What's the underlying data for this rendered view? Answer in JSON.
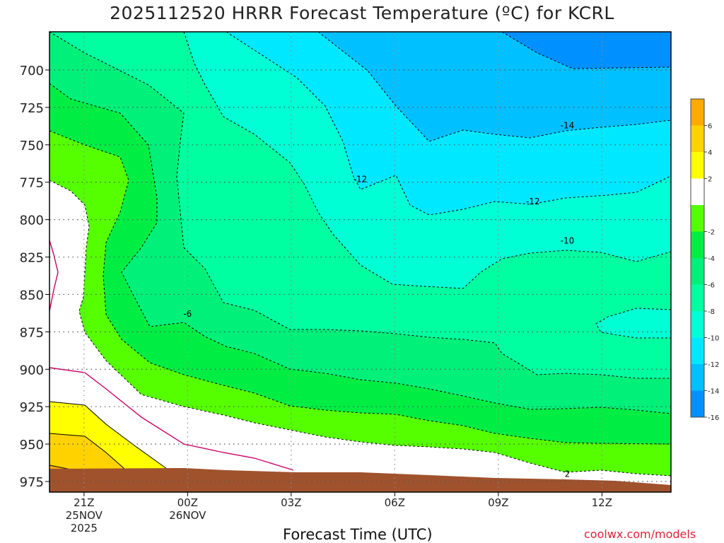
{
  "title": "2025112520 HRRR Forecast Temperature (ºC) for KCRL",
  "x_axis_label": "Forecast Time (UTC)",
  "credit": "coolwx.com/models",
  "chart_data": {
    "type": "heatmap",
    "title": "2025112520 HRRR Forecast Temperature (ºC) for KCRL",
    "xlabel": "Forecast Time (UTC)",
    "ylabel": "",
    "x_range_hours": [
      20,
      38
    ],
    "y_range_hPa": [
      975,
      675
    ],
    "y_scale": "reversed pressure",
    "y_ticks": [
      700,
      725,
      750,
      775,
      800,
      825,
      850,
      875,
      900,
      925,
      950,
      975
    ],
    "x_ticks": [
      {
        "hour": 21,
        "lines": [
          "21Z",
          "25NOV",
          "2025"
        ]
      },
      {
        "hour": 24,
        "lines": [
          "00Z",
          "26NOV"
        ]
      },
      {
        "hour": 27,
        "lines": [
          "03Z"
        ]
      },
      {
        "hour": 30,
        "lines": [
          "06Z"
        ]
      },
      {
        "hour": 33,
        "lines": [
          "09Z"
        ]
      },
      {
        "hour": 36,
        "lines": [
          "12Z"
        ]
      }
    ],
    "grid": true,
    "colorbar": {
      "placement": "right",
      "labels": [
        "6",
        "4",
        "2",
        "-2",
        "-4",
        "-6",
        "-8",
        "-10",
        "-12",
        "-14",
        "-16"
      ],
      "bins": [
        {
          "from": 6,
          "to": 8,
          "color": "#ffaa00"
        },
        {
          "from": 4,
          "to": 6,
          "color": "#ffd200"
        },
        {
          "from": 2,
          "to": 4,
          "color": "#ffff00"
        },
        {
          "from": -2,
          "to": 2,
          "color": "#ffffff"
        },
        {
          "from": -4,
          "to": -2,
          "color": "#55ff00"
        },
        {
          "from": -6,
          "to": -4,
          "color": "#00ee44"
        },
        {
          "from": -8,
          "to": -6,
          "color": "#00f07a"
        },
        {
          "from": -10,
          "to": -8,
          "color": "#00ffa0"
        },
        {
          "from": -12,
          "to": -10,
          "color": "#00ffd4"
        },
        {
          "from": -14,
          "to": -12,
          "color": "#00e8ff"
        },
        {
          "from": -16,
          "to": -14,
          "color": "#00c0ff"
        },
        {
          "from": -18,
          "to": -16,
          "color": "#0090ff"
        }
      ]
    },
    "contour_labels": [
      {
        "text": "-14",
        "hour": 35.0,
        "pressure": 737
      },
      {
        "text": "-12",
        "hour": 29.0,
        "pressure": 773
      },
      {
        "text": "-12",
        "hour": 34.0,
        "pressure": 788
      },
      {
        "text": "-10",
        "hour": 35.0,
        "pressure": 814
      },
      {
        "text": "-6",
        "hour": 24.0,
        "pressure": 863
      },
      {
        "text": "2",
        "hour": 35.0,
        "pressure": 970
      }
    ],
    "colors": {
      "terrain": "#a0522d",
      "freezing_line": "#cc0066"
    }
  }
}
